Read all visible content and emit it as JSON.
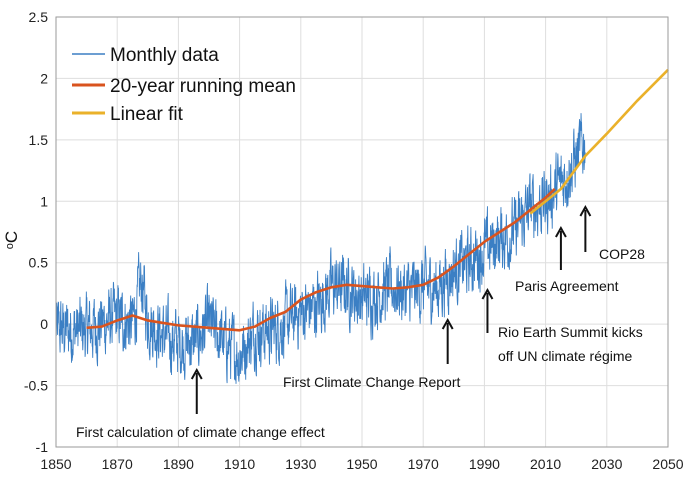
{
  "chart_data": {
    "type": "line",
    "title": "",
    "xlabel": "",
    "ylabel": "oC",
    "xlim": [
      1850,
      2050
    ],
    "ylim": [
      -1,
      2.5
    ],
    "xticks": [
      1850,
      1870,
      1890,
      1910,
      1930,
      1950,
      1970,
      1990,
      2010,
      2030,
      2050
    ],
    "yticks": [
      -1,
      -0.5,
      0,
      0.5,
      1,
      1.5,
      2,
      2.5
    ],
    "xtick_labels": [
      "1850",
      "1870",
      "1890",
      "1910",
      "1930",
      "1950",
      "1970",
      "1990",
      "2010",
      "2030",
      "2050"
    ],
    "ytick_labels": [
      "-1",
      "-0.5",
      "0",
      "0.5",
      "1",
      "1.5",
      "2",
      "2.5"
    ],
    "grid": true,
    "legend": {
      "placement": "top-left",
      "entries": [
        {
          "label": "Monthly data",
          "color": "#3b7fc4"
        },
        {
          "label": "20-year running mean",
          "color": "#d9531e"
        },
        {
          "label": "Linear fit",
          "color": "#eab12a"
        }
      ]
    },
    "series": [
      {
        "name": "Monthly data",
        "color": "#3b7fc4",
        "x": [
          1850,
          1855,
          1860,
          1865,
          1870,
          1875,
          1878,
          1880,
          1885,
          1890,
          1895,
          1900,
          1905,
          1910,
          1915,
          1920,
          1925,
          1930,
          1935,
          1940,
          1945,
          1950,
          1955,
          1960,
          1965,
          1970,
          1975,
          1980,
          1985,
          1990,
          1995,
          2000,
          2005,
          2010,
          2015,
          2020,
          2023
        ],
        "y": [
          -0.05,
          -0.05,
          -0.05,
          0.0,
          0.05,
          0.0,
          0.35,
          0.05,
          -0.1,
          -0.15,
          -0.15,
          0.0,
          -0.15,
          -0.25,
          -0.05,
          -0.05,
          0.0,
          0.1,
          0.15,
          0.3,
          0.3,
          0.2,
          0.25,
          0.3,
          0.25,
          0.3,
          0.3,
          0.45,
          0.5,
          0.6,
          0.7,
          0.75,
          0.95,
          1.0,
          1.15,
          1.35,
          1.5
        ]
      },
      {
        "name": "20-year running mean",
        "color": "#d9531e",
        "x": [
          1860,
          1865,
          1870,
          1875,
          1880,
          1885,
          1890,
          1895,
          1900,
          1905,
          1910,
          1915,
          1920,
          1925,
          1930,
          1935,
          1940,
          1945,
          1950,
          1955,
          1960,
          1965,
          1970,
          1975,
          1980,
          1985,
          1990,
          1995,
          2000,
          2005,
          2010,
          2013
        ],
        "y": [
          -0.03,
          -0.02,
          0.03,
          0.07,
          0.03,
          0.01,
          -0.01,
          -0.02,
          -0.03,
          -0.04,
          -0.05,
          -0.02,
          0.05,
          0.1,
          0.2,
          0.26,
          0.3,
          0.32,
          0.31,
          0.3,
          0.29,
          0.3,
          0.32,
          0.38,
          0.47,
          0.57,
          0.67,
          0.75,
          0.83,
          0.93,
          1.03,
          1.1
        ]
      },
      {
        "name": "Linear fit",
        "color": "#eab12a",
        "x": [
          2005,
          2015,
          2023,
          2030,
          2040,
          2050
        ],
        "y": [
          0.9,
          1.1,
          1.37,
          1.55,
          1.82,
          2.07
        ]
      }
    ],
    "annotations": [
      {
        "text": "First calculation of climate change effect",
        "arrow_x": 1896
      },
      {
        "text": "First Climate Change Report",
        "arrow_x": 1978
      },
      {
        "text": "Rio Earth Summit kicks",
        "text2": "off UN climate régime",
        "arrow_x": 1991
      },
      {
        "text": "Paris Agreement",
        "arrow_x": 2015
      },
      {
        "text": "COP28",
        "arrow_x": 2023
      }
    ]
  }
}
